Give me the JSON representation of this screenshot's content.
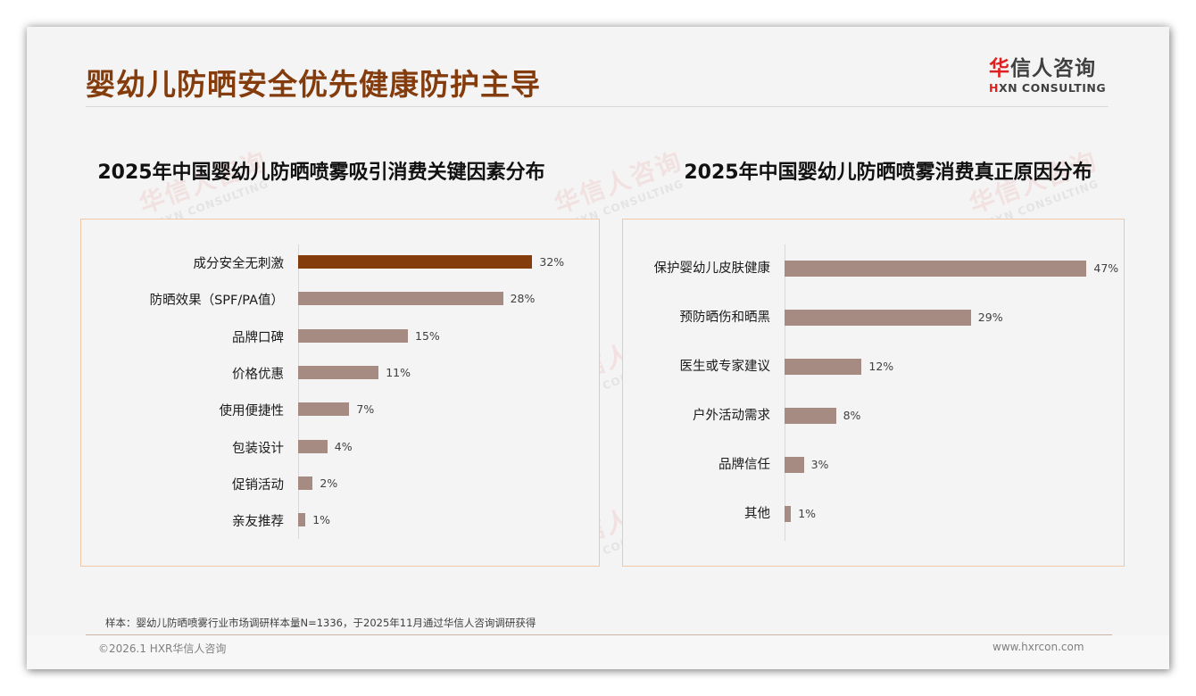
{
  "header": {
    "title": "婴幼儿防晒安全优先健康防护主导",
    "logo_cn_first": "华",
    "logo_cn_rest": "信人咨询",
    "logo_en_first": "H",
    "logo_en_rest": "XN CONSULTING"
  },
  "watermark": {
    "cn": "华信人咨询",
    "en": "HXN CONSULTING"
  },
  "colors": {
    "title": "#843c0c",
    "highlight_bar": "#843c0c",
    "bar": "#a68b82",
    "panel_border": "#f0c8a8",
    "logo_accent": "#e02020"
  },
  "chart_data": [
    {
      "type": "bar",
      "orientation": "horizontal",
      "title": "2025年中国婴幼儿防晒喷雾吸引消费关键因素分布",
      "categories": [
        "成分安全无刺激",
        "防晒效果（SPF/PA值）",
        "品牌口碑",
        "价格优惠",
        "使用便捷性",
        "包装设计",
        "促销活动",
        "亲友推荐"
      ],
      "values": [
        32,
        28,
        15,
        11,
        7,
        4,
        2,
        1
      ],
      "value_labels": [
        "32%",
        "28%",
        "15%",
        "11%",
        "7%",
        "4%",
        "2%",
        "1%"
      ],
      "unit": "%",
      "highlight_index": 0,
      "xlabel": "",
      "ylabel": "",
      "grid": false,
      "legend": null
    },
    {
      "type": "bar",
      "orientation": "horizontal",
      "title": "2025年中国婴幼儿防晒喷雾消费真正原因分布",
      "categories": [
        "保护婴幼儿皮肤健康",
        "预防晒伤和晒黑",
        "医生或专家建议",
        "户外活动需求",
        "品牌信任",
        "其他"
      ],
      "values": [
        47,
        29,
        12,
        8,
        3,
        1
      ],
      "value_labels": [
        "47%",
        "29%",
        "12%",
        "8%",
        "3%",
        "1%"
      ],
      "unit": "%",
      "highlight_index": null,
      "xlabel": "",
      "ylabel": "",
      "grid": false,
      "legend": null
    }
  ],
  "footer": {
    "source_note": "样本：婴幼儿防晒喷雾行业市场调研样本量N=1336，于2025年11月通过华信人咨询调研获得",
    "copyright": "©2026.1 HXR华信人咨询",
    "website": "www.hxrcon.com"
  }
}
